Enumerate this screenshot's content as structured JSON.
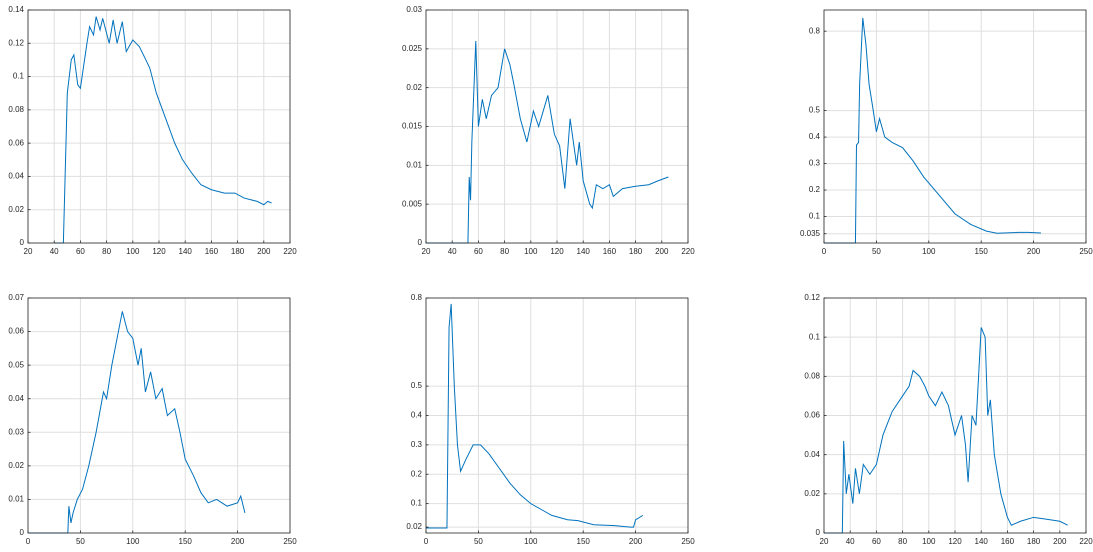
{
  "chart_data": [
    {
      "type": "line",
      "grid": true,
      "xlim": [
        20,
        220
      ],
      "xticks": [
        20,
        40,
        60,
        80,
        100,
        120,
        140,
        160,
        180,
        200,
        220
      ],
      "ylim": [
        0,
        0.14
      ],
      "yticks": [
        0,
        0.02,
        0.04,
        0.06,
        0.08,
        0.1,
        0.12,
        0.14
      ],
      "series": [
        {
          "color": "#0072bd",
          "x": [
            40,
            47,
            50,
            53,
            55,
            58,
            60,
            65,
            67,
            70,
            72,
            75,
            77,
            82,
            85,
            88,
            92,
            95,
            100,
            105,
            110,
            113,
            118,
            125,
            132,
            138,
            145,
            152,
            160,
            170,
            178,
            185,
            195,
            200,
            203,
            206
          ],
          "values": [
            0,
            0,
            0.09,
            0.11,
            0.113,
            0.095,
            0.093,
            0.12,
            0.13,
            0.125,
            0.136,
            0.128,
            0.135,
            0.12,
            0.134,
            0.12,
            0.133,
            0.115,
            0.122,
            0.118,
            0.11,
            0.105,
            0.09,
            0.075,
            0.06,
            0.05,
            0.042,
            0.035,
            0.032,
            0.03,
            0.03,
            0.027,
            0.025,
            0.023,
            0.025,
            0.024
          ]
        }
      ]
    },
    {
      "type": "line",
      "grid": true,
      "xlim": [
        20,
        220
      ],
      "xticks": [
        20,
        40,
        60,
        80,
        100,
        120,
        140,
        160,
        180,
        200,
        220
      ],
      "ylim": [
        0,
        0.03
      ],
      "yticks": [
        0,
        0.005,
        0.01,
        0.015,
        0.02,
        0.025,
        0.03
      ],
      "series": [
        {
          "color": "#0072bd",
          "x": [
            20,
            52,
            53,
            54,
            55,
            58,
            60,
            63,
            66,
            70,
            75,
            80,
            84,
            87,
            92,
            97,
            102,
            106,
            113,
            118,
            122,
            126,
            130,
            135,
            137,
            140,
            145,
            147,
            150,
            155,
            160,
            163,
            170,
            180,
            190,
            197,
            205
          ],
          "values": [
            0,
            0,
            0.0085,
            0.0055,
            0.013,
            0.026,
            0.015,
            0.0185,
            0.016,
            0.019,
            0.02,
            0.025,
            0.023,
            0.0205,
            0.016,
            0.013,
            0.017,
            0.015,
            0.019,
            0.014,
            0.0125,
            0.007,
            0.016,
            0.01,
            0.013,
            0.008,
            0.005,
            0.0045,
            0.0075,
            0.007,
            0.0075,
            0.006,
            0.007,
            0.0073,
            0.0075,
            0.008,
            0.0085
          ]
        }
      ]
    },
    {
      "type": "line",
      "grid": true,
      "xlim": [
        0,
        250
      ],
      "xticks": [
        0,
        50,
        100,
        150,
        200,
        250
      ],
      "ylim": [
        0,
        0.88
      ],
      "yticks": [
        0.035,
        0.1,
        0.2,
        0.3,
        0.4,
        0.5,
        0.8
      ],
      "series": [
        {
          "color": "#0072bd",
          "x": [
            0,
            30,
            31,
            33,
            34,
            37,
            40,
            43,
            47,
            50,
            53,
            58,
            65,
            75,
            85,
            95,
            110,
            125,
            140,
            155,
            165,
            185,
            195,
            207
          ],
          "values": [
            0,
            0,
            0.37,
            0.38,
            0.6,
            0.85,
            0.75,
            0.6,
            0.5,
            0.42,
            0.47,
            0.4,
            0.38,
            0.36,
            0.31,
            0.25,
            0.18,
            0.11,
            0.07,
            0.045,
            0.037,
            0.04,
            0.04,
            0.038
          ]
        }
      ]
    },
    {
      "type": "line",
      "grid": true,
      "xlim": [
        0,
        250
      ],
      "xticks": [
        0,
        50,
        100,
        150,
        200,
        250
      ],
      "ylim": [
        0,
        0.07
      ],
      "yticks": [
        0,
        0.01,
        0.02,
        0.03,
        0.04,
        0.05,
        0.06,
        0.07
      ],
      "series": [
        {
          "color": "#0072bd",
          "x": [
            0,
            38,
            39,
            41,
            43,
            47,
            52,
            58,
            65,
            72,
            75,
            80,
            85,
            90,
            95,
            100,
            105,
            108,
            112,
            117,
            122,
            128,
            133,
            140,
            145,
            150,
            158,
            165,
            172,
            180,
            190,
            200,
            203,
            207
          ],
          "values": [
            0,
            0,
            0.008,
            0.003,
            0.006,
            0.01,
            0.013,
            0.02,
            0.03,
            0.042,
            0.04,
            0.05,
            0.058,
            0.066,
            0.06,
            0.058,
            0.05,
            0.055,
            0.042,
            0.048,
            0.04,
            0.043,
            0.035,
            0.037,
            0.03,
            0.022,
            0.017,
            0.012,
            0.009,
            0.01,
            0.008,
            0.009,
            0.011,
            0.006
          ]
        }
      ]
    },
    {
      "type": "line",
      "grid": true,
      "xlim": [
        0,
        250
      ],
      "xticks": [
        0,
        50,
        100,
        150,
        200,
        250
      ],
      "ylim": [
        0,
        0.8
      ],
      "yticks": [
        0.02,
        0.1,
        0.2,
        0.3,
        0.4,
        0.5,
        0.8
      ],
      "series": [
        {
          "color": "#0072bd",
          "x": [
            0,
            20,
            22,
            24,
            27,
            30,
            33,
            38,
            45,
            52,
            60,
            70,
            80,
            90,
            100,
            110,
            120,
            135,
            145,
            160,
            180,
            195,
            198,
            200,
            207
          ],
          "values": [
            0.017,
            0.017,
            0.7,
            0.78,
            0.5,
            0.3,
            0.21,
            0.25,
            0.3,
            0.3,
            0.27,
            0.22,
            0.17,
            0.13,
            0.1,
            0.08,
            0.06,
            0.045,
            0.042,
            0.028,
            0.025,
            0.02,
            0.02,
            0.045,
            0.06
          ]
        }
      ]
    },
    {
      "type": "line",
      "grid": true,
      "xlim": [
        20,
        220
      ],
      "xticks": [
        20,
        40,
        60,
        80,
        100,
        120,
        140,
        160,
        180,
        200,
        220
      ],
      "ylim": [
        0,
        0.12
      ],
      "yticks": [
        0,
        0.02,
        0.04,
        0.06,
        0.08,
        0.1,
        0.12
      ],
      "series": [
        {
          "color": "#0072bd",
          "x": [
            20,
            34,
            35,
            37,
            39,
            42,
            44,
            47,
            50,
            55,
            60,
            65,
            72,
            80,
            85,
            88,
            93,
            97,
            100,
            105,
            110,
            115,
            120,
            125,
            128,
            130,
            133,
            136,
            140,
            143,
            145,
            147,
            150,
            155,
            160,
            163,
            170,
            180,
            190,
            200,
            206
          ],
          "values": [
            0,
            0,
            0.047,
            0.02,
            0.03,
            0.015,
            0.033,
            0.02,
            0.035,
            0.03,
            0.035,
            0.05,
            0.062,
            0.07,
            0.075,
            0.083,
            0.08,
            0.075,
            0.07,
            0.065,
            0.072,
            0.065,
            0.05,
            0.06,
            0.045,
            0.026,
            0.06,
            0.055,
            0.105,
            0.1,
            0.06,
            0.068,
            0.04,
            0.02,
            0.008,
            0.004,
            0.006,
            0.008,
            0.007,
            0.006,
            0.004
          ]
        }
      ]
    }
  ]
}
